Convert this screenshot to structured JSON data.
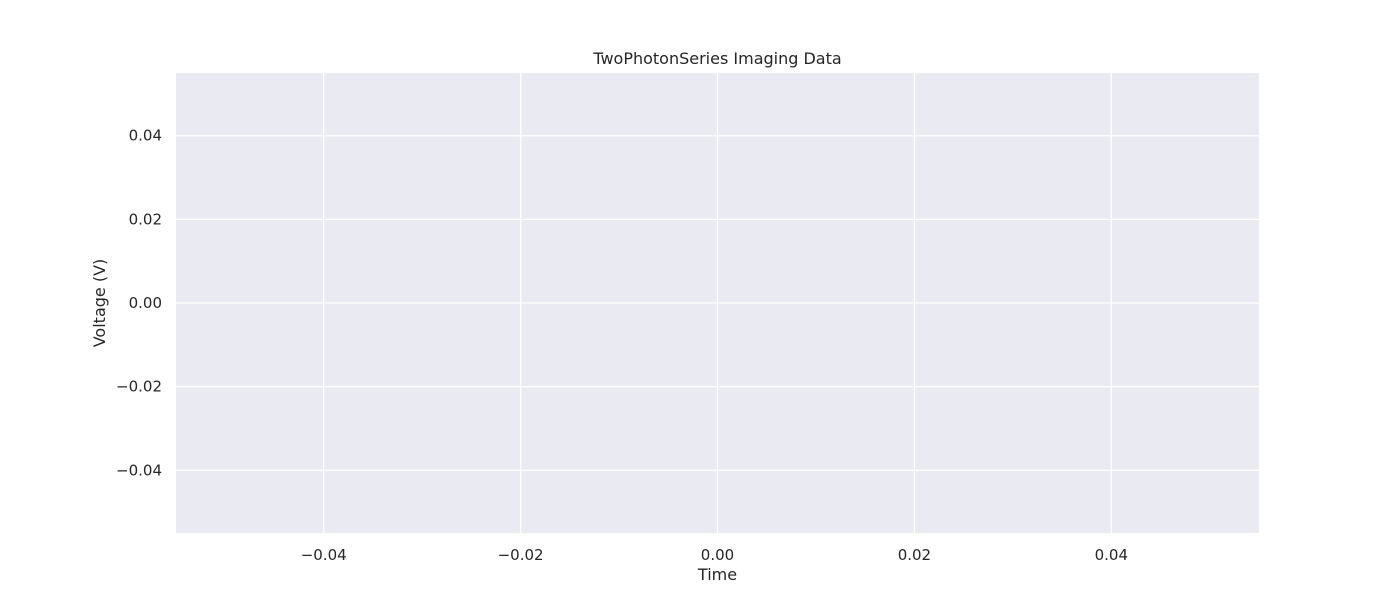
{
  "chart_data": {
    "type": "line",
    "title": "TwoPhotonSeries Imaging Data",
    "xlabel": "Time",
    "ylabel": "Voltage (V)",
    "xlim": [
      -0.055,
      0.055
    ],
    "ylim": [
      -0.055,
      0.055
    ],
    "x_ticks": [
      -0.04,
      -0.02,
      0.0,
      0.02,
      0.04
    ],
    "y_ticks": [
      -0.04,
      -0.02,
      0.0,
      0.02,
      0.04
    ],
    "x_tick_labels": [
      "−0.04",
      "−0.02",
      "0.00",
      "0.02",
      "0.04"
    ],
    "y_tick_labels": [
      "−0.04",
      "−0.02",
      "0.00",
      "0.02",
      "0.04"
    ],
    "grid": true,
    "series": [],
    "colors": {
      "plot_background": "#EAEAF2",
      "grid": "#FFFFFF",
      "text": "#262626"
    }
  }
}
